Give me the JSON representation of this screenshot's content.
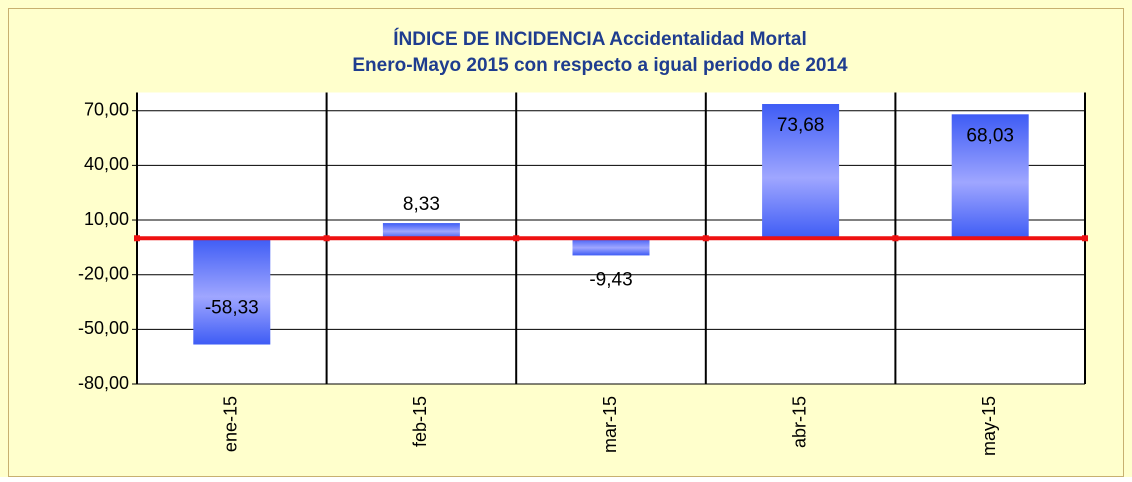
{
  "chart_data": {
    "type": "bar",
    "title": "ÍNDICE DE INCIDENCIA Accidentalidad Mortal",
    "subtitle": "Enero-Mayo 2015 con respecto a igual periodo de 2014",
    "categories": [
      "ene-15",
      "feb-15",
      "mar-15",
      "abr-15",
      "may-15"
    ],
    "values": [
      -58.33,
      8.33,
      -9.43,
      73.68,
      68.03
    ],
    "value_labels": [
      "-58,33",
      "8,33",
      "-9,43",
      "73,68",
      "68,03"
    ],
    "color": "#4a6cff",
    "ylim": [
      -80,
      80
    ],
    "yticks": [
      {
        "value": -80,
        "label": "-80,00"
      },
      {
        "value": -50,
        "label": "-50,00"
      },
      {
        "value": -20,
        "label": "-20,00"
      },
      {
        "value": 10,
        "label": "10,00"
      },
      {
        "value": 40,
        "label": "40,00"
      },
      {
        "value": 70,
        "label": "70,00"
      }
    ],
    "grid": true
  }
}
